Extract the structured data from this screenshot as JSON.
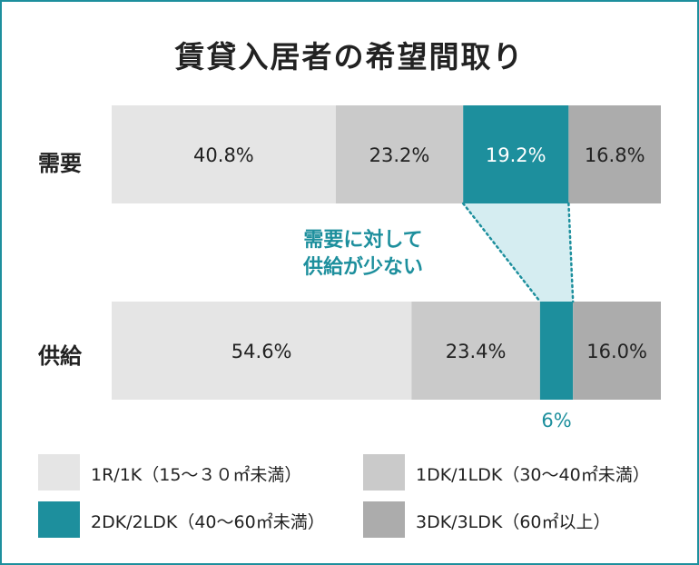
{
  "chart_data": {
    "type": "bar",
    "orientation": "horizontal",
    "stacked": "percent",
    "title": "賃貸入居者の希望間取り",
    "categories": [
      "需要",
      "供給"
    ],
    "series": [
      {
        "name": "1R/1K（15～３０㎡未満）",
        "color": "#e5e5e5",
        "values": [
          40.8,
          54.6
        ],
        "labels": [
          "40.8%",
          "54.6%"
        ]
      },
      {
        "name": "1DK/1LDK（30～40㎡未満）",
        "color": "#cacaca",
        "values": [
          23.2,
          23.4
        ],
        "labels": [
          "23.2%",
          "23.4%"
        ]
      },
      {
        "name": "2DK/2LDK（40～60㎡未満）",
        "color": "#1d8f9d",
        "values": [
          19.2,
          6
        ],
        "labels": [
          "19.2%",
          "6%"
        ]
      },
      {
        "name": "3DK/3LDK（60㎡以上）",
        "color": "#acacac",
        "values": [
          16.8,
          16.0
        ],
        "labels": [
          "16.8%",
          "16.0%"
        ]
      }
    ],
    "annotation": {
      "lines": [
        "需要に対して",
        "供給が少ない"
      ],
      "color": "#1d8f9d"
    }
  }
}
